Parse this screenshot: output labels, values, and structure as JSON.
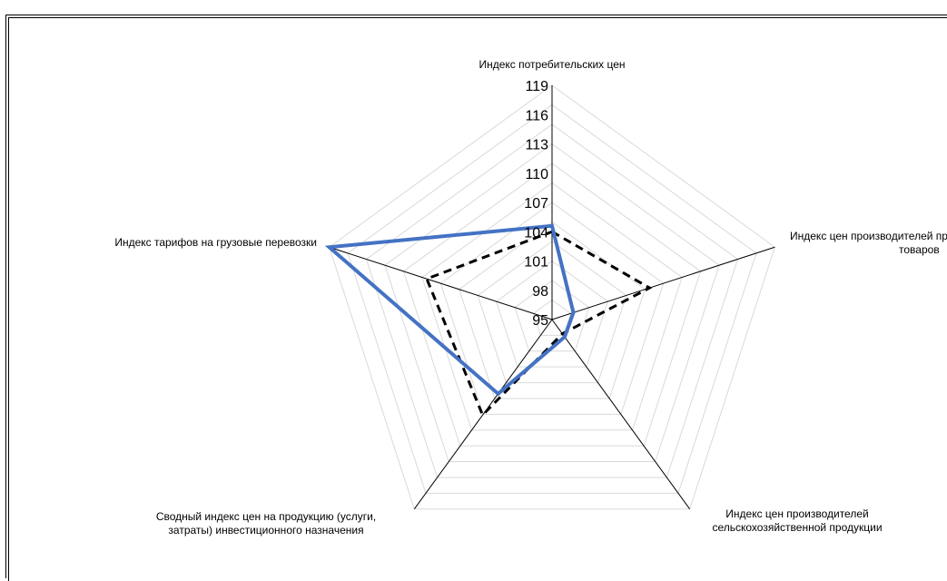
{
  "chart_data": {
    "type": "radar",
    "axes": [
      "Индекс потребительских цен",
      "Индекс цен производителей промышленных товаров",
      "Индекс цен производителей сельскохозяйственной продукции",
      "Сводный индекс цен на продукцию (услуги, затраты) инвестиционного назначения",
      "Индекс тарифов на грузовые перевозки"
    ],
    "axis_label_lines": [
      [
        "Индекс потребительских цен"
      ],
      [
        "Индекс цен производителей промышленных",
        "товаров"
      ],
      [
        "Индекс цен производителей",
        "сельскохозяйственной продукции"
      ],
      [
        "Сводный индекс цен на продукцию (услуги,",
        "затраты) инвестиционного назначения"
      ],
      [
        "Индекс тарифов на грузовые перевозки"
      ]
    ],
    "ticks": [
      "95",
      "98",
      "101",
      "104",
      "107",
      "110",
      "113",
      "116",
      "119"
    ],
    "range": [
      95,
      119
    ],
    "series": [
      {
        "style": "solid",
        "color": "#4472C4",
        "values": [
          104.6,
          97.3,
          97.2,
          104.4,
          119.0
        ]
      },
      {
        "style": "dashed",
        "color": "#000000",
        "values": [
          104.0,
          105.5,
          96.8,
          107.1,
          108.5
        ]
      }
    ],
    "gridlines": true
  }
}
